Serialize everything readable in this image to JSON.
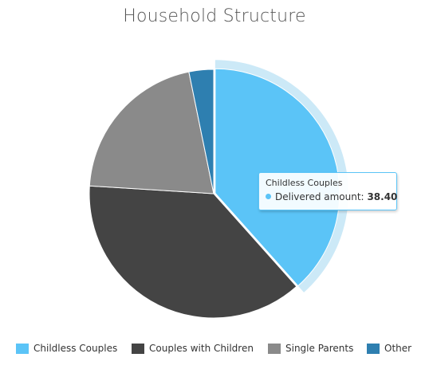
{
  "chart_data": {
    "type": "pie",
    "title": "Household Structure",
    "series_name": "Delivered amount",
    "categories": [
      "Childless Couples",
      "Couples with Children",
      "Single Parents",
      "Other"
    ],
    "values": [
      38.4,
      37.6,
      20.8,
      3.2
    ],
    "colors": [
      "#5bc4f7",
      "#444444",
      "#8a8a8a",
      "#2e7fb0"
    ],
    "highlighted_index": 0,
    "legend_position": "bottom",
    "tooltip": {
      "header": "Childless Couples",
      "label": "Delivered amount:",
      "value": "38.40"
    }
  },
  "colors": {
    "halo": "#cce9f7",
    "slice_border": "#ffffff"
  }
}
